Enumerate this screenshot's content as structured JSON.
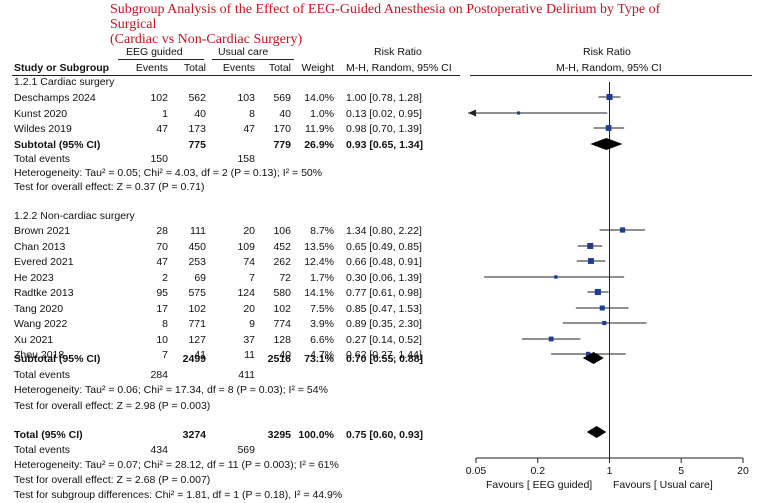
{
  "title_line1": "Subgroup Analysis of the Effect of EEG-Guided Anesthesia on Postoperative Delirium by Type of Surgical",
  "title_line2": "(Cardiac vs Non-Cardiac Surgery)",
  "headers": {
    "group1": "EEG guided",
    "group2": "Usual care",
    "rr_text": "Risk Ratio",
    "rr_plot": "Risk Ratio",
    "study": "Study or Subgroup",
    "events1": "Events",
    "total1": "Total",
    "events2": "Events",
    "total2": "Total",
    "weight": "Weight",
    "method_text": "M-H, Random, 95% CI",
    "method_plot": "M-H, Random, 95% CI"
  },
  "subgroup1": {
    "label": "1.2.1 Cardiac surgery",
    "rows": [
      {
        "study": "Deschamps 2024",
        "e1": "102",
        "t1": "562",
        "e2": "103",
        "t2": "569",
        "w": "14.0%",
        "ci": "1.00 [0.78, 1.28]"
      },
      {
        "study": "Kunst 2020",
        "e1": "1",
        "t1": "40",
        "e2": "8",
        "t2": "40",
        "w": "1.0%",
        "ci": "0.13 [0.02, 0.95]"
      },
      {
        "study": "Wildes 2019",
        "e1": "47",
        "t1": "173",
        "e2": "47",
        "t2": "170",
        "w": "11.9%",
        "ci": "0.98 [0.70, 1.39]"
      }
    ],
    "subtotal": {
      "label": "Subtotal (95% CI)",
      "t1": "775",
      "t2": "779",
      "w": "26.9%",
      "ci": "0.93 [0.65, 1.34]"
    },
    "events": {
      "label": "Total events",
      "e1": "150",
      "e2": "158"
    },
    "het": "Heterogeneity: Tau² = 0.05; Chi² = 4.03, df = 2 (P = 0.13); I² = 50%",
    "test": "Test for overall effect: Z = 0.37 (P = 0.71)"
  },
  "subgroup2": {
    "label": "1.2.2 Non-cardiac surgery",
    "rows": [
      {
        "study": "Brown 2021",
        "e1": "28",
        "t1": "111",
        "e2": "20",
        "t2": "106",
        "w": "8.7%",
        "ci": "1.34 [0.80, 2.22]"
      },
      {
        "study": "Chan 2013",
        "e1": "70",
        "t1": "450",
        "e2": "109",
        "t2": "452",
        "w": "13.5%",
        "ci": "0.65 [0.49, 0.85]"
      },
      {
        "study": "Evered 2021",
        "e1": "47",
        "t1": "253",
        "e2": "74",
        "t2": "262",
        "w": "12.4%",
        "ci": "0.66 [0.48, 0.91]"
      },
      {
        "study": "He 2023",
        "e1": "2",
        "t1": "69",
        "e2": "7",
        "t2": "72",
        "w": "1.7%",
        "ci": "0.30 [0.06, 1.39]"
      },
      {
        "study": "Radtke 2013",
        "e1": "95",
        "t1": "575",
        "e2": "124",
        "t2": "580",
        "w": "14.1%",
        "ci": "0.77 [0.61, 0.98]"
      },
      {
        "study": "Tang 2020",
        "e1": "17",
        "t1": "102",
        "e2": "20",
        "t2": "102",
        "w": "7.5%",
        "ci": "0.85 [0.47, 1.53]"
      },
      {
        "study": "Wang 2022",
        "e1": "8",
        "t1": "771",
        "e2": "9",
        "t2": "774",
        "w": "3.9%",
        "ci": "0.89 [0.35, 2.30]"
      },
      {
        "study": "Xu 2021",
        "e1": "10",
        "t1": "127",
        "e2": "37",
        "t2": "128",
        "w": "6.6%",
        "ci": "0.27 [0.14, 0.52]"
      },
      {
        "study": "Zhou 2018",
        "e1": "7",
        "t1": "41",
        "e2": "11",
        "t2": "40",
        "w": "4.7%",
        "ci": "0.62 [0.27, 1.44]"
      }
    ],
    "subtotal": {
      "label": "Subtotal (95% CI)",
      "t1": "2499",
      "t2": "2516",
      "w": "73.1%",
      "ci": "0.70 [0.55, 0.88]"
    },
    "events": {
      "label": "Total events",
      "e1": "284",
      "e2": "411"
    },
    "het": "Heterogeneity: Tau² = 0.06; Chi² = 17.34, df = 8 (P = 0.03); I² = 54%",
    "test": "Test for overall effect: Z = 2.98 (P = 0.003)"
  },
  "overall": {
    "label": "Total (95% CI)",
    "t1": "3274",
    "t2": "3295",
    "w": "100.0%",
    "ci": "0.75 [0.60, 0.93]",
    "events": {
      "label": "Total events",
      "e1": "434",
      "e2": "569"
    },
    "het": "Heterogeneity: Tau² = 0.07; Chi² = 28.12, df = 11 (P = 0.003); I² = 61%",
    "test": "Test for overall effect: Z = 2.68 (P = 0.007)",
    "subgroup_diff": "Test for subgroup differences: Chi² = 1.81, df = 1 (P = 0.18), I² = 44.9%"
  },
  "axis": {
    "ticks": [
      "0.05",
      "0.2",
      "1",
      "5",
      "20"
    ],
    "favours_left": "Favours [ EEG guided]",
    "favours_right": "Favours [ Usual care]"
  },
  "colors": {
    "title": "#c8141e",
    "marker": "#1f3c96",
    "line": "#222222"
  },
  "chart_data": {
    "type": "forest",
    "scale": "log",
    "xlim": [
      0.05,
      20
    ],
    "null_value": 1,
    "studies": [
      {
        "name": "Deschamps 2024",
        "subgroup": "Cardiac surgery",
        "rr": 1.0,
        "lo": 0.78,
        "hi": 1.28,
        "weight": 14.0
      },
      {
        "name": "Kunst 2020",
        "subgroup": "Cardiac surgery",
        "rr": 0.13,
        "lo": 0.02,
        "hi": 0.95,
        "weight": 1.0
      },
      {
        "name": "Wildes 2019",
        "subgroup": "Cardiac surgery",
        "rr": 0.98,
        "lo": 0.7,
        "hi": 1.39,
        "weight": 11.9
      },
      {
        "name": "Brown 2021",
        "subgroup": "Non-cardiac surgery",
        "rr": 1.34,
        "lo": 0.8,
        "hi": 2.22,
        "weight": 8.7
      },
      {
        "name": "Chan 2013",
        "subgroup": "Non-cardiac surgery",
        "rr": 0.65,
        "lo": 0.49,
        "hi": 0.85,
        "weight": 13.5
      },
      {
        "name": "Evered 2021",
        "subgroup": "Non-cardiac surgery",
        "rr": 0.66,
        "lo": 0.48,
        "hi": 0.91,
        "weight": 12.4
      },
      {
        "name": "He 2023",
        "subgroup": "Non-cardiac surgery",
        "rr": 0.3,
        "lo": 0.06,
        "hi": 1.39,
        "weight": 1.7
      },
      {
        "name": "Radtke 2013",
        "subgroup": "Non-cardiac surgery",
        "rr": 0.77,
        "lo": 0.61,
        "hi": 0.98,
        "weight": 14.1
      },
      {
        "name": "Tang 2020",
        "subgroup": "Non-cardiac surgery",
        "rr": 0.85,
        "lo": 0.47,
        "hi": 1.53,
        "weight": 7.5
      },
      {
        "name": "Wang 2022",
        "subgroup": "Non-cardiac surgery",
        "rr": 0.89,
        "lo": 0.35,
        "hi": 2.3,
        "weight": 3.9
      },
      {
        "name": "Xu 2021",
        "subgroup": "Non-cardiac surgery",
        "rr": 0.27,
        "lo": 0.14,
        "hi": 0.52,
        "weight": 6.6
      },
      {
        "name": "Zhou 2018",
        "subgroup": "Non-cardiac surgery",
        "rr": 0.62,
        "lo": 0.27,
        "hi": 1.44,
        "weight": 4.7
      }
    ],
    "pooled": [
      {
        "name": "Subtotal (95% CI)",
        "subgroup": "Cardiac surgery",
        "rr": 0.93,
        "lo": 0.65,
        "hi": 1.34
      },
      {
        "name": "Subtotal (95% CI)",
        "subgroup": "Non-cardiac surgery",
        "rr": 0.7,
        "lo": 0.55,
        "hi": 0.88
      },
      {
        "name": "Total (95% CI)",
        "subgroup": "All",
        "rr": 0.75,
        "lo": 0.6,
        "hi": 0.93
      }
    ]
  }
}
